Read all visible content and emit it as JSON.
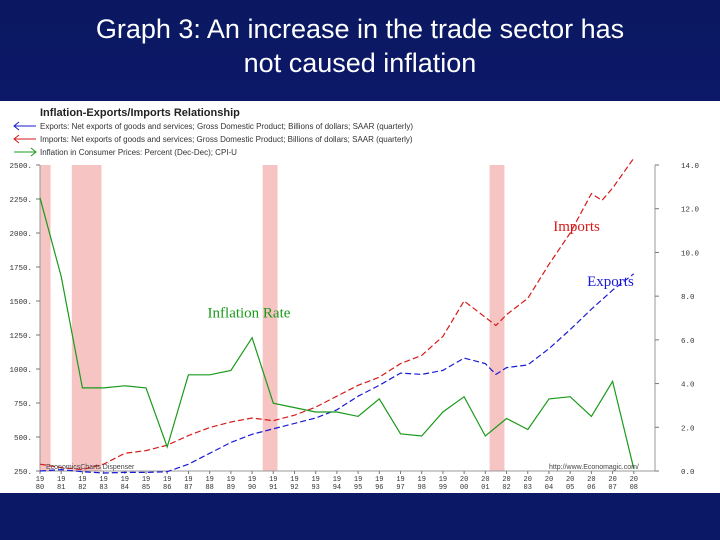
{
  "slide": {
    "title_line1": "Graph 3: An increase in the trade sector has",
    "title_line2": "not caused inflation"
  },
  "chart_data": {
    "type": "line",
    "title": "Inflation-Exports/Imports Relationship",
    "legend": [
      {
        "label": "Exports: Net exports of goods and services; Gross Domestic Product; Billions of dollars; SAAR (quarterly)",
        "color": "#1a1ad6",
        "arrow": "left"
      },
      {
        "label": "Imports: Net exports of goods and services; Gross Domestic Product; Billions of dollars; SAAR (quarterly)",
        "color": "#d61a1a",
        "arrow": "left"
      },
      {
        "label": "Inflation in Consumer Prices: Percent (Dec-Dec); CPI-U",
        "color": "#1a9a1a",
        "arrow": "right"
      }
    ],
    "legend_placement": "top-left",
    "y_left": {
      "min": 250,
      "max": 2500,
      "ticks": [
        250,
        500,
        750,
        1000,
        1250,
        1500,
        1750,
        2000,
        2250,
        2500
      ],
      "tick_labels": [
        "250.",
        "500.",
        "750.",
        "1000.",
        "1250.",
        "1500.",
        "1750.",
        "2000.",
        "2250.",
        "2500."
      ]
    },
    "y_right": {
      "min": 0,
      "max": 14,
      "ticks": [
        0,
        2,
        4,
        6,
        8,
        10,
        12,
        14
      ],
      "tick_labels": [
        "0.0",
        "2.0",
        "4.0",
        "6.0",
        "8.0",
        "10.0",
        "12.0",
        "14.0"
      ]
    },
    "x": {
      "min": 1980,
      "max": 2009,
      "ticks": [
        1980,
        1981,
        1982,
        1983,
        1984,
        1985,
        1986,
        1987,
        1988,
        1989,
        1990,
        1991,
        1992,
        1993,
        1994,
        1995,
        1996,
        1997,
        1998,
        1999,
        2000,
        2001,
        2002,
        2003,
        2004,
        2005,
        2006,
        2007,
        2008
      ],
      "tick_labels_top": [
        "19",
        "19",
        "19",
        "19",
        "19",
        "19",
        "19",
        "19",
        "19",
        "19",
        "19",
        "19",
        "19",
        "19",
        "19",
        "19",
        "19",
        "19",
        "19",
        "19",
        "20",
        "20",
        "20",
        "20",
        "20",
        "20",
        "20",
        "20",
        "20"
      ],
      "tick_labels_bottom": [
        "80",
        "81",
        "82",
        "83",
        "84",
        "85",
        "86",
        "87",
        "88",
        "89",
        "90",
        "91",
        "92",
        "93",
        "94",
        "95",
        "96",
        "97",
        "98",
        "99",
        "00",
        "01",
        "02",
        "03",
        "04",
        "05",
        "06",
        "07",
        "08"
      ]
    },
    "recessions": [
      [
        1980.0,
        1980.5
      ],
      [
        1981.5,
        1982.9
      ],
      [
        1990.5,
        1991.2
      ],
      [
        2001.2,
        2001.9
      ]
    ],
    "grid": false,
    "series": [
      {
        "name": "Imports",
        "axis": "left",
        "color": "#d61a1a",
        "dash": "6,3",
        "x": [
          1980,
          1981,
          1982,
          1983,
          1984,
          1985,
          1986,
          1987,
          1988,
          1989,
          1990,
          1991,
          1992,
          1993,
          1994,
          1995,
          1996,
          1997,
          1998,
          1999,
          2000,
          2001,
          2001.5,
          2002,
          2003,
          2004,
          2005,
          2006,
          2006.5,
          2007,
          2008
        ],
        "y": [
          300,
          275,
          260,
          300,
          380,
          400,
          440,
          510,
          570,
          610,
          640,
          620,
          660,
          720,
          800,
          880,
          940,
          1040,
          1100,
          1240,
          1500,
          1380,
          1320,
          1400,
          1520,
          1770,
          2000,
          2290,
          2240,
          2330,
          2550
        ]
      },
      {
        "name": "Exports",
        "axis": "left",
        "color": "#1a1ad6",
        "dash": "6,3",
        "x": [
          1980,
          1981,
          1982,
          1983,
          1984,
          1985,
          1986,
          1987,
          1988,
          1989,
          1990,
          1991,
          1992,
          1993,
          1994,
          1995,
          1996,
          1997,
          1998,
          1999,
          2000,
          2001,
          2001.5,
          2002,
          2003,
          2004,
          2005,
          2006,
          2007,
          2008
        ],
        "y": [
          250,
          260,
          245,
          235,
          240,
          240,
          245,
          300,
          380,
          460,
          520,
          560,
          600,
          640,
          700,
          800,
          880,
          970,
          960,
          990,
          1080,
          1040,
          960,
          1010,
          1030,
          1150,
          1290,
          1440,
          1580,
          1700
        ]
      },
      {
        "name": "Inflation Rate",
        "axis": "right",
        "color": "#1a9a1a",
        "dash": "none",
        "x": [
          1980,
          1981,
          1982,
          1983,
          1984,
          1985,
          1986,
          1987,
          1988,
          1989,
          1990,
          1991,
          1992,
          1993,
          1994,
          1995,
          1996,
          1997,
          1998,
          1999,
          2000,
          2001,
          2002,
          2003,
          2004,
          2005,
          2006,
          2007,
          2008
        ],
        "y": [
          12.5,
          8.9,
          3.8,
          3.8,
          3.9,
          3.8,
          1.1,
          4.4,
          4.4,
          4.6,
          6.1,
          3.1,
          2.9,
          2.7,
          2.7,
          2.5,
          3.3,
          1.7,
          1.6,
          2.7,
          3.4,
          1.6,
          2.4,
          1.9,
          3.3,
          3.4,
          2.5,
          4.1,
          0.1
        ]
      }
    ],
    "annotations": [
      {
        "text": "Imports",
        "color": "#d61a1a",
        "x": 2004.2,
        "y": 2015,
        "axis": "left"
      },
      {
        "text": "Exports",
        "color": "#1a1ad6",
        "x": 2005.8,
        "y": 1610,
        "axis": "left"
      },
      {
        "text": "Inflation Rate",
        "color": "#1a9a1a",
        "x": 1987.9,
        "y": 1380,
        "axis": "left"
      }
    ],
    "source_left": "EconomicsCharts Dispenser",
    "source_right": "http://www.Economagic.com/"
  }
}
